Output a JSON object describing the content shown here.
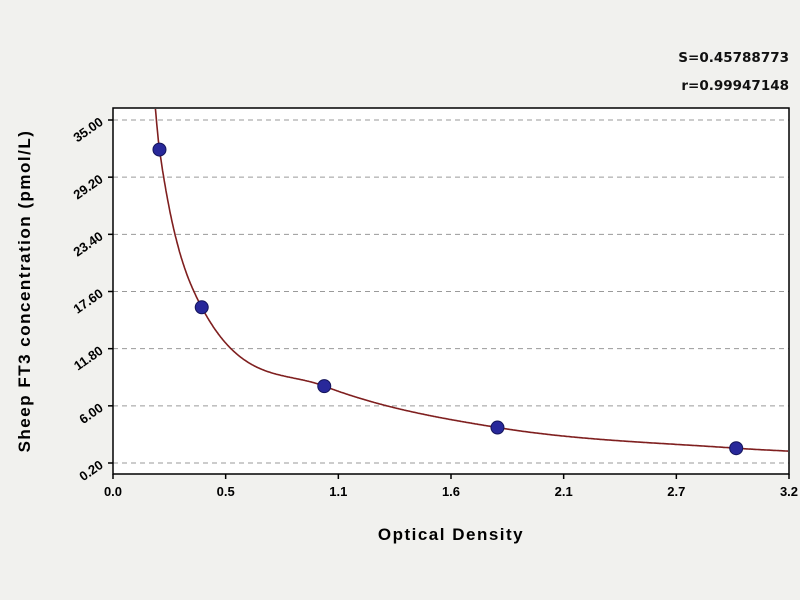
{
  "annotations": {
    "s_value": "S=0.45788773",
    "r_value": "r=0.99947148"
  },
  "chart_data": {
    "type": "scatter",
    "title": "",
    "xlabel": "Optical Density",
    "ylabel": "Sheep FT3 concentration (pmol/L)",
    "x_axis": {
      "min": 0.0,
      "max": 3.2,
      "ticks": [
        {
          "value": 0.0,
          "label": "0.0"
        },
        {
          "value": 0.5333,
          "label": "0.5"
        },
        {
          "value": 1.0667,
          "label": "1.1"
        },
        {
          "value": 1.6,
          "label": "1.6"
        },
        {
          "value": 2.1333,
          "label": "2.1"
        },
        {
          "value": 2.6667,
          "label": "2.7"
        },
        {
          "value": 3.2,
          "label": "3.2"
        }
      ]
    },
    "y_axis": {
      "min": 0.2,
      "max": 35.0,
      "ticks": [
        {
          "value": 0.2,
          "label": "0.20"
        },
        {
          "value": 6.0,
          "label": "6.00"
        },
        {
          "value": 11.8,
          "label": "11.80"
        },
        {
          "value": 17.6,
          "label": "17.60"
        },
        {
          "value": 23.4,
          "label": "23.40"
        },
        {
          "value": 29.2,
          "label": "29.20"
        },
        {
          "value": 35.0,
          "label": "35.00"
        }
      ]
    },
    "points": [
      {
        "x": 0.22,
        "y": 32.0
      },
      {
        "x": 0.42,
        "y": 16.0
      },
      {
        "x": 1.0,
        "y": 8.0
      },
      {
        "x": 1.82,
        "y": 3.8
      },
      {
        "x": 2.95,
        "y": 1.7
      }
    ],
    "curve": {
      "shape": "hyperbolic-decay",
      "start": {
        "x": 0.195,
        "y": 37.5
      },
      "end": {
        "x": 3.2,
        "y": 1.4
      }
    },
    "grid": "horizontal-dashed",
    "legend": "none",
    "colors": {
      "background": "#f1f1ee",
      "plot_background": "#ffffff",
      "grid": "#9a9a9a",
      "axis": "#000000",
      "point": "#28289a",
      "point_border": "#14145a",
      "curve": "#7f1f1f"
    }
  }
}
